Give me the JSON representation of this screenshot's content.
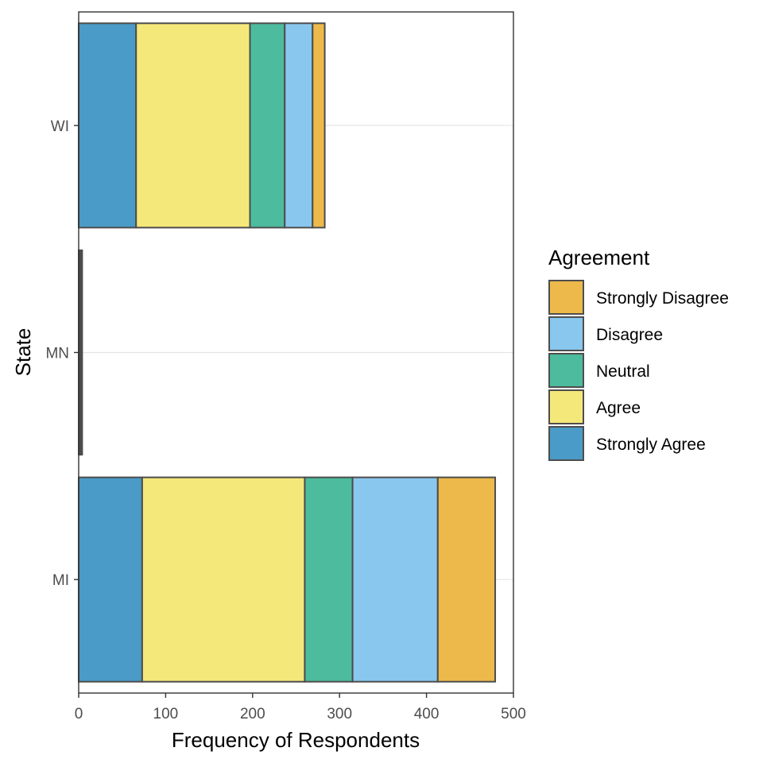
{
  "chart_data": {
    "type": "bar",
    "orientation": "horizontal",
    "stacked": true,
    "categories": [
      "MI",
      "MN",
      "WI"
    ],
    "xlabel": "Frequency of Respondents",
    "ylabel": "State",
    "xlim": [
      0,
      500
    ],
    "xticks": [
      0,
      100,
      200,
      300,
      400,
      500
    ],
    "grid": "horizontal major lines only",
    "legend": {
      "title": "Agreement",
      "placement": "right",
      "order": [
        "Strongly Disagree",
        "Disagree",
        "Neutral",
        "Agree",
        "Strongly Agree"
      ]
    },
    "series": [
      {
        "name": "Strongly Agree",
        "color": "#4A9BC7",
        "values": [
          73,
          1,
          66
        ]
      },
      {
        "name": "Agree",
        "color": "#F5E87A",
        "values": [
          187,
          1,
          131
        ]
      },
      {
        "name": "Neutral",
        "color": "#4DBB9E",
        "values": [
          55,
          1,
          40
        ]
      },
      {
        "name": "Disagree",
        "color": "#89C7EE",
        "values": [
          98,
          1,
          32
        ]
      },
      {
        "name": "Strongly Disagree",
        "color": "#ECB94A",
        "values": [
          66,
          0,
          14
        ]
      }
    ]
  }
}
